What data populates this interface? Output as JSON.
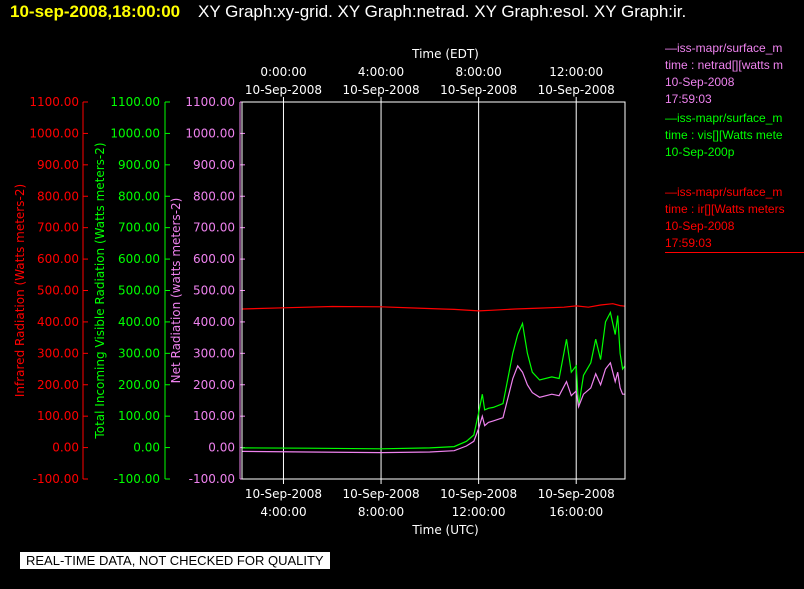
{
  "header": {
    "datetime": "10-sep-2008,18:00:00",
    "titles": "XY Graph:xy-grid.  XY Graph:netrad.  XY Graph:esol.  XY Graph:ir."
  },
  "top_axis": {
    "title": "Time (EDT)",
    "ticks": [
      {
        "time": "0:00:00",
        "date": "10-Sep-2008"
      },
      {
        "time": "4:00:00",
        "date": "10-Sep-2008"
      },
      {
        "time": "8:00:00",
        "date": "10-Sep-2008"
      },
      {
        "time": "12:00:00",
        "date": "10-Sep-2008"
      }
    ]
  },
  "bottom_axis": {
    "title": "Time (UTC)",
    "ticks": [
      {
        "date": "10-Sep-2008",
        "time": "4:00:00"
      },
      {
        "date": "10-Sep-2008",
        "time": "8:00:00"
      },
      {
        "date": "10-Sep-2008",
        "time": "12:00:00"
      },
      {
        "date": "10-Sep-2008",
        "time": "16:00:00"
      }
    ]
  },
  "legend": [
    {
      "line1": "—iss-mapr/surface_m",
      "line2": "time : netrad[][watts m",
      "line3": "10-Sep-2008",
      "line4": "17:59:03",
      "color": "#ee82ee"
    },
    {
      "line1": "—iss-mapr/surface_m",
      "line2": "time : vis[][Watts mete",
      "line3": "10-Sep-200p",
      "line4": "",
      "color": "#00ff00"
    },
    {
      "line1": "—iss-mapr/surface_m",
      "line2": "time : ir[][Watts meters",
      "line3": "10-Sep-2008",
      "line4": "17:59:03",
      "color": "#ff0000"
    }
  ],
  "disclaimer": "REAL-TIME DATA, NOT CHECKED FOR QUALITY",
  "chart_data": {
    "type": "line",
    "x_unit": "hours UTC on 10-Sep-2008",
    "xlim": [
      2.3,
      18.0
    ],
    "x_ticks": [
      4,
      8,
      12,
      16
    ],
    "ylim": [
      -100,
      1100
    ],
    "y_ticks": [
      -100,
      0,
      100,
      200,
      300,
      400,
      500,
      600,
      700,
      800,
      900,
      1000,
      1100
    ],
    "y_tick_labels": [
      "-100.00",
      "0.00",
      "100.00",
      "200.00",
      "300.00",
      "400.00",
      "500.00",
      "600.00",
      "700.00",
      "800.00",
      "900.00",
      "1000.00",
      "1100.00"
    ],
    "y_axes": [
      {
        "label": "Infrared Radiation (Watts meters-2)",
        "color": "#ff0000"
      },
      {
        "label": "Total Incoming Visible Radiation (Watts meters-2)",
        "color": "#00ff00"
      },
      {
        "label": "Net Radiation (watts meters-2)",
        "color": "#ee82ee"
      }
    ],
    "grid": true,
    "series": [
      {
        "color": "#ff0000",
        "x": [
          2.3,
          4.0,
          6.0,
          8.0,
          9.5,
          10.5,
          11.0,
          12.0,
          12.5,
          13.5,
          14.5,
          15.5,
          16.0,
          16.5,
          17.0,
          17.5,
          17.8,
          18.0
        ],
        "y": [
          441,
          445,
          449,
          448,
          444,
          441,
          440,
          435,
          437,
          441,
          444,
          447,
          451,
          447,
          454,
          458,
          452,
          450
        ]
      },
      {
        "color": "#00ff00",
        "x": [
          2.3,
          5.0,
          8.0,
          10.0,
          11.0,
          11.5,
          11.8,
          12.0,
          12.15,
          12.25,
          12.4,
          12.6,
          13.0,
          13.4,
          13.6,
          13.8,
          14.0,
          14.2,
          14.5,
          15.0,
          15.3,
          15.6,
          15.8,
          16.0,
          16.1,
          16.3,
          16.6,
          16.8,
          17.0,
          17.2,
          17.4,
          17.6,
          17.7,
          17.8,
          17.9,
          18.0
        ],
        "y": [
          -1,
          -2,
          -4,
          -1,
          3,
          20,
          40,
          110,
          170,
          120,
          125,
          128,
          140,
          300,
          360,
          395,
          300,
          240,
          215,
          225,
          220,
          345,
          240,
          260,
          130,
          230,
          270,
          345,
          280,
          400,
          430,
          360,
          420,
          300,
          250,
          260
        ]
      },
      {
        "color": "#ee82ee",
        "x": [
          2.3,
          5.0,
          8.0,
          10.0,
          11.0,
          11.5,
          11.8,
          12.0,
          12.15,
          12.25,
          12.4,
          12.6,
          13.0,
          13.4,
          13.6,
          13.8,
          14.0,
          14.2,
          14.5,
          15.0,
          15.3,
          15.6,
          15.8,
          16.0,
          16.1,
          16.3,
          16.6,
          16.8,
          17.0,
          17.2,
          17.4,
          17.6,
          17.7,
          17.8,
          17.9,
          18.0
        ],
        "y": [
          -12,
          -14,
          -16,
          -14,
          -10,
          5,
          20,
          60,
          100,
          70,
          80,
          85,
          95,
          220,
          260,
          240,
          200,
          175,
          160,
          170,
          165,
          210,
          165,
          180,
          130,
          170,
          190,
          235,
          200,
          250,
          270,
          210,
          240,
          190,
          170,
          170
        ]
      }
    ]
  }
}
